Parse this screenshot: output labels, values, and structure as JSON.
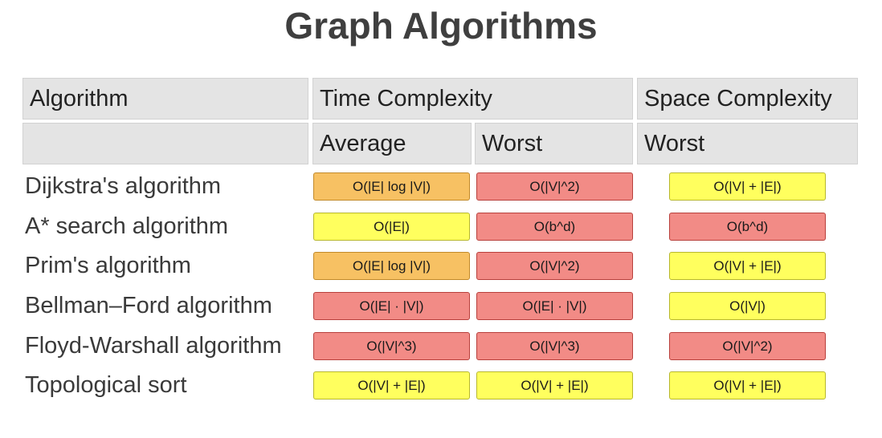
{
  "title": "Graph Algorithms",
  "header": {
    "algorithm": "Algorithm",
    "time_complexity": "Time Complexity",
    "space_complexity": "Space Complexity",
    "average": "Average",
    "worst_time": "Worst",
    "worst_space": "Worst"
  },
  "colors": {
    "good": "#ffff5e",
    "fair": "#f7c163",
    "bad": "#f28b86"
  },
  "rows": [
    {
      "name": "Dijkstra's algorithm",
      "average": {
        "text": "O(|E| log |V|)",
        "rating": "fair"
      },
      "worst": {
        "text": "O(|V|^2)",
        "rating": "bad"
      },
      "space": {
        "text": "O(|V| + |E|)",
        "rating": "good"
      }
    },
    {
      "name": "A* search algorithm",
      "average": {
        "text": "O(|E|)",
        "rating": "good"
      },
      "worst": {
        "text": "O(b^d)",
        "rating": "bad"
      },
      "space": {
        "text": "O(b^d)",
        "rating": "bad"
      }
    },
    {
      "name": "Prim's algorithm",
      "average": {
        "text": "O(|E| log |V|)",
        "rating": "fair"
      },
      "worst": {
        "text": "O(|V|^2)",
        "rating": "bad"
      },
      "space": {
        "text": "O(|V| + |E|)",
        "rating": "good"
      }
    },
    {
      "name": "Bellman–Ford algorithm",
      "average": {
        "text": "O(|E| · |V|)",
        "rating": "bad"
      },
      "worst": {
        "text": "O(|E| · |V|)",
        "rating": "bad"
      },
      "space": {
        "text": "O(|V|)",
        "rating": "good"
      }
    },
    {
      "name": "Floyd-Warshall algorithm",
      "average": {
        "text": "O(|V|^3)",
        "rating": "bad"
      },
      "worst": {
        "text": "O(|V|^3)",
        "rating": "bad"
      },
      "space": {
        "text": "O(|V|^2)",
        "rating": "bad"
      }
    },
    {
      "name": "Topological sort",
      "average": {
        "text": "O(|V| + |E|)",
        "rating": "good"
      },
      "worst": {
        "text": "O(|V| + |E|)",
        "rating": "good"
      },
      "space": {
        "text": "O(|V| + |E|)",
        "rating": "good"
      }
    }
  ]
}
